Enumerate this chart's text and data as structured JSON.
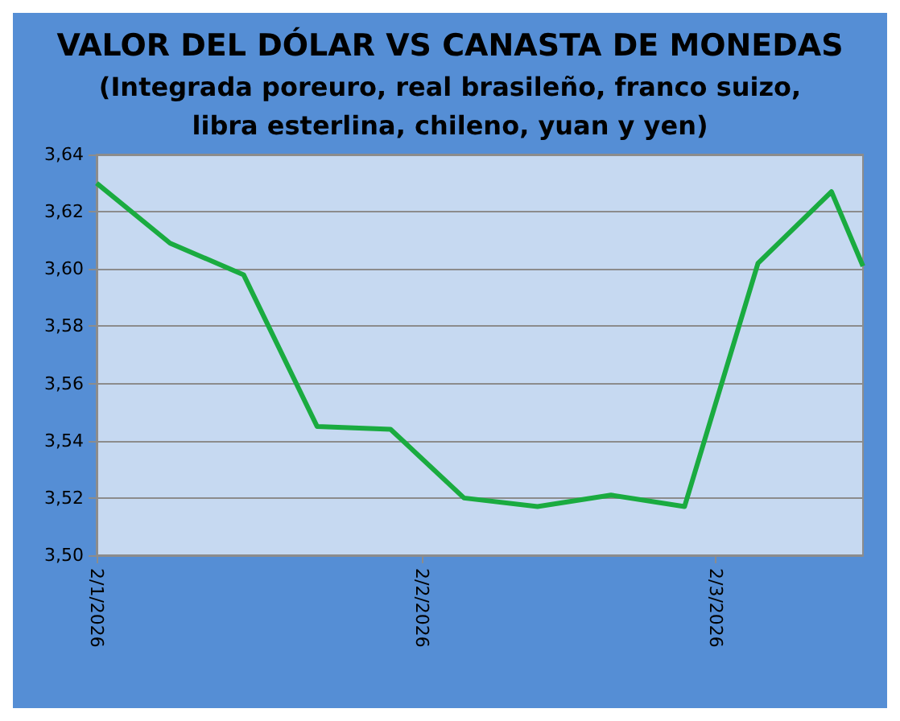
{
  "chart_data": {
    "type": "line",
    "title": "VALOR DEL DÓLAR VS CANASTA DE MONEDAS",
    "subtitle": "(Integrada poreuro, real brasileño, franco suizo,\nlibra esterlina, chileno, yuan y yen)",
    "x": [
      "2026-01-02",
      "2026-01-09",
      "2026-01-16",
      "2026-01-23",
      "2026-01-30",
      "2026-02-06",
      "2026-02-13",
      "2026-02-20",
      "2026-02-27",
      "2026-03-06",
      "2026-03-13",
      "2026-03-16"
    ],
    "series": [
      {
        "color": "#1aab40",
        "values": [
          3.63,
          3.609,
          3.598,
          3.545,
          3.544,
          3.52,
          3.517,
          3.521,
          3.517,
          3.602,
          3.627,
          3.601
        ]
      }
    ],
    "xlim": [
      "2026-01-02",
      "2026-03-16"
    ],
    "xticks": [
      {
        "value": "2026-01-02",
        "label": "2/1/2026"
      },
      {
        "value": "2026-02-02",
        "label": "2/2/2026"
      },
      {
        "value": "2026-03-02",
        "label": "2/3/2026"
      }
    ],
    "ylim": [
      3.5,
      3.64
    ],
    "yticks": [
      {
        "value": 3.5,
        "label": "3,50"
      },
      {
        "value": 3.52,
        "label": "3,52"
      },
      {
        "value": 3.54,
        "label": "3,54"
      },
      {
        "value": 3.56,
        "label": "3,56"
      },
      {
        "value": 3.58,
        "label": "3,58"
      },
      {
        "value": 3.6,
        "label": "3,60"
      },
      {
        "value": 3.62,
        "label": "3,62"
      },
      {
        "value": 3.64,
        "label": "3,64"
      }
    ],
    "grid": "y",
    "marker": "none",
    "line_style": "solid"
  }
}
